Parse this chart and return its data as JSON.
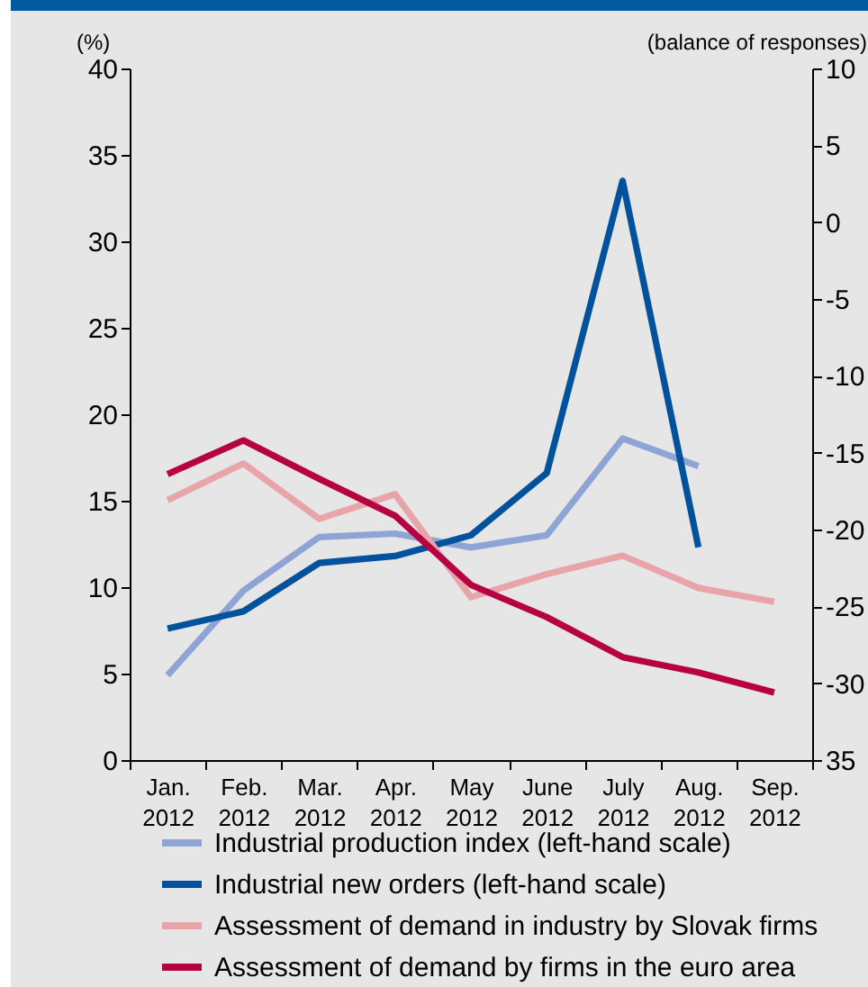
{
  "chart_data": {
    "type": "line",
    "ylabel": "(%)",
    "y2label": "(balance of responses)",
    "categories": [
      "Jan. 2012",
      "Feb. 2012",
      "Mar. 2012",
      "Apr. 2012",
      "May 2012",
      "June 2012",
      "July 2012",
      "Aug. 2012",
      "Sep. 2012"
    ],
    "series": [
      {
        "name": "Industrial production index (left-hand scale)",
        "color": "#8da4d4",
        "values": [
          4.9,
          9.8,
          12.9,
          13.1,
          12.3,
          13.0,
          18.6,
          17.0,
          null
        ]
      },
      {
        "name": "Industrial new orders (left-hand scale)",
        "color": "#00529c",
        "values": [
          7.6,
          8.6,
          11.4,
          11.8,
          13.0,
          16.6,
          33.5,
          12.3,
          null
        ]
      },
      {
        "name": "Assessment of demand in industry by Slovak firms",
        "color": "#e8a4a8",
        "axis": "y2",
        "values": [
          -18.1,
          -15.7,
          -19.3,
          -17.7,
          -24.4,
          -22.9,
          -21.7,
          -23.8,
          -24.7
        ]
      },
      {
        "name": "Assessment of demand by firms in the euro area",
        "color": "#b6003f",
        "axis": "y2",
        "values": [
          -16.4,
          -14.2,
          -16.7,
          -19.1,
          -23.6,
          -25.7,
          -28.3,
          -29.3,
          -30.6
        ]
      }
    ],
    "ylim": [
      0,
      40
    ],
    "yticks": [
      0,
      5,
      10,
      15,
      20,
      25,
      30,
      35,
      40
    ],
    "y2lim": [
      -35,
      10
    ],
    "y2ticks": [
      {
        "value": -35,
        "label": "35"
      },
      -30,
      -25,
      -20,
      -15,
      -10,
      -5,
      0,
      5,
      10
    ],
    "legend": "bottom"
  }
}
